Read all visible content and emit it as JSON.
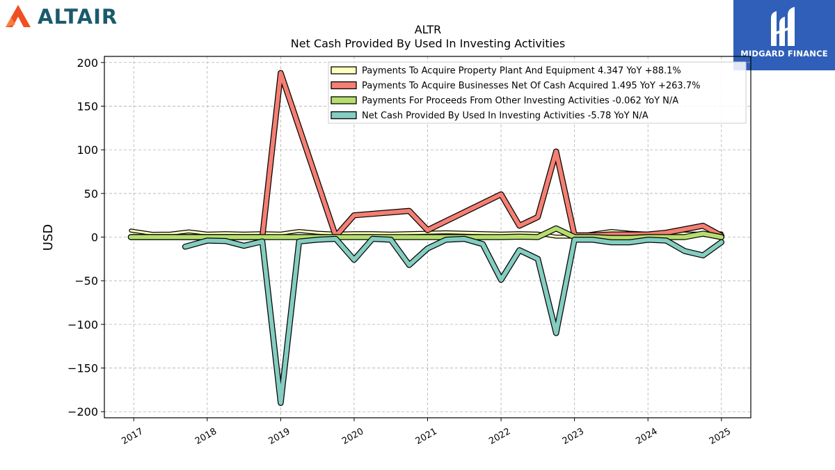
{
  "branding": {
    "left_logo": "ALTAIR",
    "left_logo_icon": "altair-triangle-icon",
    "left_logo_color": "#f04e23",
    "right_logo": "MIDGARD FINANCE",
    "right_logo_bg": "#2f5fb8"
  },
  "chart_data": {
    "type": "line",
    "title": "ALTR",
    "subtitle": "Net Cash Provided By Used In Investing Activities",
    "ylabel": "USD",
    "xlabel": "",
    "ylim": [
      -207,
      207
    ],
    "xlim": [
      2016.6,
      2025.4
    ],
    "yticks": [
      -200,
      -150,
      -100,
      -50,
      0,
      50,
      100,
      150,
      200
    ],
    "ytick_labels": [
      "−200",
      "−150",
      "−100",
      "−50",
      "0",
      "50",
      "100",
      "150",
      "200"
    ],
    "xticks": [
      2017,
      2018,
      2019,
      2020,
      2021,
      2022,
      2023,
      2024,
      2025
    ],
    "xtick_labels": [
      "2017",
      "2018",
      "2019",
      "2020",
      "2021",
      "2022",
      "2023",
      "2024",
      "2025"
    ],
    "grid": true,
    "legend_position": "top-right",
    "series": [
      {
        "name": "Payments To Acquire Property Plant And Equipment",
        "legend_label": "Payments To Acquire Property Plant And Equipment  4.347 YoY +88.1%",
        "color": "#ffffc0",
        "line_width": 3,
        "points": [
          [
            2016.96,
            7.5
          ],
          [
            2017.25,
            3.8
          ],
          [
            2017.5,
            4
          ],
          [
            2017.75,
            6.5
          ],
          [
            2018.0,
            4
          ],
          [
            2018.25,
            4.5
          ],
          [
            2018.5,
            4
          ],
          [
            2018.75,
            4.5
          ],
          [
            2019.0,
            4
          ],
          [
            2019.25,
            7
          ],
          [
            2019.5,
            5
          ],
          [
            2019.75,
            4
          ],
          [
            2020.0,
            4.5
          ],
          [
            2020.25,
            4.5
          ],
          [
            2020.5,
            4
          ],
          [
            2020.75,
            4.5
          ],
          [
            2021.0,
            5
          ],
          [
            2021.25,
            5.5
          ],
          [
            2021.5,
            5
          ],
          [
            2021.75,
            4.5
          ],
          [
            2022.0,
            4
          ],
          [
            2022.25,
            4.5
          ],
          [
            2022.5,
            4
          ],
          [
            2022.75,
            0.5
          ],
          [
            2023.0,
            0.5
          ],
          [
            2023.25,
            4
          ],
          [
            2023.5,
            7
          ],
          [
            2023.75,
            5
          ],
          [
            2024.0,
            4
          ],
          [
            2024.25,
            4.5
          ],
          [
            2024.5,
            4
          ],
          [
            2024.75,
            4
          ],
          [
            2025.0,
            4.3
          ]
        ]
      },
      {
        "name": "Payments To Acquire Businesses Net Of Cash Acquired",
        "legend_label": "Payments To Acquire Businesses Net Of Cash Acquired  1.495 YoY +263.7%",
        "color": "#f47f72",
        "line_width": 6,
        "points": [
          [
            2016.96,
            0
          ],
          [
            2017.25,
            0
          ],
          [
            2017.5,
            0
          ],
          [
            2017.75,
            0
          ],
          [
            2018.0,
            0
          ],
          [
            2018.25,
            0
          ],
          [
            2018.5,
            0
          ],
          [
            2018.75,
            0
          ],
          [
            2019.0,
            188
          ],
          [
            2019.75,
            1
          ],
          [
            2020.0,
            25
          ],
          [
            2020.75,
            30
          ],
          [
            2021.0,
            8
          ],
          [
            2022.0,
            49
          ],
          [
            2022.25,
            13
          ],
          [
            2022.5,
            23
          ],
          [
            2022.75,
            98
          ],
          [
            2023.0,
            2
          ],
          [
            2023.25,
            2
          ],
          [
            2023.5,
            3
          ],
          [
            2023.75,
            3
          ],
          [
            2024.0,
            3
          ],
          [
            2024.25,
            5
          ],
          [
            2024.5,
            9
          ],
          [
            2024.75,
            13
          ],
          [
            2025.0,
            1.5
          ]
        ]
      },
      {
        "name": "Payments For Proceeds From Other Investing Activities",
        "legend_label": "Payments For Proceeds From Other Investing Activities  -0.062 YoY N/A",
        "color": "#b5de6e",
        "line_width": 6,
        "points": [
          [
            2016.96,
            0
          ],
          [
            2017.25,
            0
          ],
          [
            2017.5,
            0
          ],
          [
            2017.75,
            0
          ],
          [
            2018.0,
            0
          ],
          [
            2018.25,
            0
          ],
          [
            2018.5,
            0
          ],
          [
            2018.75,
            0
          ],
          [
            2019.0,
            0
          ],
          [
            2019.25,
            0
          ],
          [
            2019.5,
            0
          ],
          [
            2019.75,
            0
          ],
          [
            2020.0,
            0
          ],
          [
            2020.25,
            0
          ],
          [
            2020.5,
            0
          ],
          [
            2020.75,
            0
          ],
          [
            2021.0,
            0
          ],
          [
            2021.25,
            0
          ],
          [
            2021.5,
            0
          ],
          [
            2021.75,
            0
          ],
          [
            2022.0,
            0
          ],
          [
            2022.25,
            0.5
          ],
          [
            2022.5,
            0
          ],
          [
            2022.75,
            10
          ],
          [
            2023.0,
            0
          ],
          [
            2023.25,
            0
          ],
          [
            2023.5,
            -1
          ],
          [
            2023.75,
            -1
          ],
          [
            2024.0,
            0
          ],
          [
            2024.25,
            0
          ],
          [
            2024.5,
            0
          ],
          [
            2024.75,
            4
          ],
          [
            2025.0,
            -0.06
          ]
        ]
      },
      {
        "name": "Net Cash Provided By Used In Investing Activities",
        "legend_label": "Net Cash Provided By Used In Investing Activities  -5.78 YoY N/A",
        "color": "#84cdc0",
        "line_width": 6,
        "points": [
          [
            2017.7,
            -11
          ],
          [
            2018.0,
            -4
          ],
          [
            2018.25,
            -4.5
          ],
          [
            2018.5,
            -10
          ],
          [
            2018.75,
            -5
          ],
          [
            2019.0,
            -190
          ],
          [
            2019.25,
            -5
          ],
          [
            2019.5,
            -3
          ],
          [
            2019.75,
            -2
          ],
          [
            2020.0,
            -26
          ],
          [
            2020.25,
            -2
          ],
          [
            2020.5,
            -3
          ],
          [
            2020.75,
            -32
          ],
          [
            2021.0,
            -13
          ],
          [
            2021.25,
            -3
          ],
          [
            2021.5,
            -2
          ],
          [
            2021.75,
            -8
          ],
          [
            2022.0,
            -49
          ],
          [
            2022.25,
            -15
          ],
          [
            2022.5,
            -25
          ],
          [
            2022.75,
            -110
          ],
          [
            2023.0,
            -3
          ],
          [
            2023.25,
            -3
          ],
          [
            2023.5,
            -6
          ],
          [
            2023.75,
            -6
          ],
          [
            2024.0,
            -3
          ],
          [
            2024.25,
            -4
          ],
          [
            2024.5,
            -16
          ],
          [
            2024.75,
            -21
          ],
          [
            2025.0,
            -5.8
          ]
        ]
      }
    ]
  }
}
